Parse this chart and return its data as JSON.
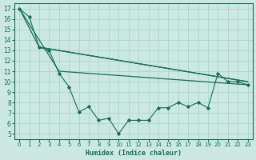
{
  "xlabel": "Humidex (Indice chaleur)",
  "xlim": [
    -0.5,
    23.5
  ],
  "ylim": [
    4.5,
    17.5
  ],
  "xticks": [
    0,
    1,
    2,
    3,
    4,
    5,
    6,
    7,
    8,
    9,
    10,
    11,
    12,
    13,
    14,
    15,
    16,
    17,
    18,
    19,
    20,
    21,
    22,
    23
  ],
  "yticks": [
    5,
    6,
    7,
    8,
    9,
    10,
    11,
    12,
    13,
    14,
    15,
    16,
    17
  ],
  "bg_color": "#cce9e1",
  "grid_color": "#b0d8ce",
  "line_color": "#1a6b5a",
  "line1_x": [
    0,
    1,
    2,
    3,
    4,
    5,
    6,
    7,
    8,
    9,
    10,
    11,
    12,
    13,
    14,
    15,
    16,
    17,
    18,
    19,
    20,
    21,
    22,
    23
  ],
  "line1_y": [
    17.0,
    16.2,
    13.3,
    13.0,
    10.8,
    9.5,
    7.1,
    7.6,
    6.3,
    6.5,
    5.0,
    6.3,
    6.3,
    6.3,
    7.5,
    7.5,
    8.0,
    7.6,
    8.0,
    7.5,
    10.8,
    10.0,
    10.0,
    9.7
  ],
  "line2_x": [
    0,
    2,
    23
  ],
  "line2_y": [
    17.0,
    13.3,
    10.0
  ],
  "line3_x": [
    0,
    4,
    23
  ],
  "line3_y": [
    17.0,
    11.0,
    9.7
  ],
  "line4_x": [
    2,
    23
  ],
  "line4_y": [
    13.3,
    10.0
  ]
}
